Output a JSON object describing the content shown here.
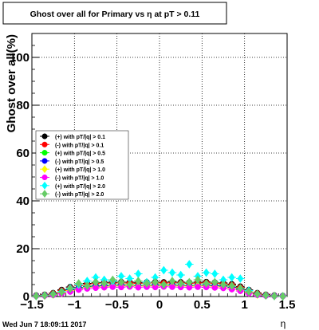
{
  "chart_data": {
    "type": "scatter",
    "title": "Ghost over all for Primary vs   η at pT > 0.11",
    "xlabel": "η",
    "ylabel": "Ghost over all(%)",
    "xlim": [
      -1.5,
      1.5
    ],
    "ylim": [
      0,
      110
    ],
    "x_ticks": [
      -1.5,
      -1,
      -0.5,
      0,
      0.5,
      1,
      1.5
    ],
    "x_tick_labels": [
      "−1.5",
      "−1",
      "−0.5",
      "0",
      "0.5",
      "1",
      "1.5"
    ],
    "y_ticks": [
      0,
      20,
      40,
      60,
      80,
      100
    ],
    "y_tick_labels": [
      "0",
      "20",
      "40",
      "60",
      "80",
      "100"
    ],
    "grid": true,
    "legend_position": "center-left",
    "series": [
      {
        "name": "(+) with pT/|q| > 0.1",
        "color": "#000000",
        "marker": "circle",
        "x": [
          -1.45,
          -1.35,
          -1.25,
          -1.15,
          -1.05,
          -0.95,
          -0.85,
          -0.75,
          -0.65,
          -0.55,
          -0.45,
          -0.35,
          -0.25,
          -0.15,
          -0.05,
          0.05,
          0.15,
          0.25,
          0.35,
          0.45,
          0.55,
          0.65,
          0.75,
          0.85,
          0.95,
          1.05,
          1.15,
          1.25,
          1.35,
          1.45
        ],
        "y": [
          0.5,
          0.8,
          1.5,
          2.8,
          4.0,
          5.0,
          5.5,
          5.8,
          5.9,
          6.0,
          6.1,
          6.0,
          5.9,
          6.0,
          6.1,
          6.0,
          6.1,
          6.0,
          5.9,
          6.0,
          6.1,
          5.9,
          5.7,
          5.2,
          4.2,
          2.8,
          1.5,
          0.8,
          0.5,
          0.3
        ]
      },
      {
        "name": "(-) with pT/|q| > 0.1",
        "color": "#ff0000",
        "marker": "circle",
        "x": [
          -1.45,
          -1.35,
          -1.25,
          -1.15,
          -1.05,
          -0.95,
          -0.85,
          -0.75,
          -0.65,
          -0.55,
          -0.45,
          -0.35,
          -0.25,
          -0.15,
          -0.05,
          0.05,
          0.15,
          0.25,
          0.35,
          0.45,
          0.55,
          0.65,
          0.75,
          0.85,
          0.95,
          1.05,
          1.15,
          1.25,
          1.35,
          1.45
        ],
        "y": [
          0.4,
          0.7,
          1.3,
          2.5,
          3.6,
          4.6,
          5.1,
          5.4,
          5.5,
          5.6,
          5.7,
          5.6,
          5.5,
          5.6,
          5.7,
          5.6,
          5.7,
          5.6,
          5.5,
          5.6,
          5.7,
          5.5,
          5.3,
          4.8,
          3.8,
          2.5,
          1.3,
          0.7,
          0.4,
          0.2
        ]
      },
      {
        "name": "(+) with pT/|q| > 0.5",
        "color": "#00ff00",
        "marker": "circle",
        "x": [
          -1.45,
          -1.35,
          -1.25,
          -1.15,
          -1.05,
          -0.95,
          -0.85,
          -0.75,
          -0.65,
          -0.55,
          -0.45,
          -0.35,
          -0.25,
          -0.15,
          -0.05,
          0.05,
          0.15,
          0.25,
          0.35,
          0.45,
          0.55,
          0.65,
          0.75,
          0.85,
          0.95,
          1.05,
          1.15,
          1.25,
          1.35,
          1.45
        ],
        "y": [
          0.3,
          0.5,
          1.0,
          2.0,
          3.0,
          3.8,
          4.2,
          4.5,
          4.7,
          4.8,
          4.9,
          4.8,
          4.7,
          4.8,
          4.9,
          4.8,
          4.9,
          4.8,
          4.7,
          4.8,
          4.9,
          4.7,
          4.5,
          4.0,
          3.2,
          2.0,
          1.0,
          0.5,
          0.3,
          0.2
        ]
      },
      {
        "name": "(-) with pT/|q| > 0.5",
        "color": "#0000ff",
        "marker": "circle",
        "x": [
          -1.45,
          -1.35,
          -1.25,
          -1.15,
          -1.05,
          -0.95,
          -0.85,
          -0.75,
          -0.65,
          -0.55,
          -0.45,
          -0.35,
          -0.25,
          -0.15,
          -0.05,
          0.05,
          0.15,
          0.25,
          0.35,
          0.45,
          0.55,
          0.65,
          0.75,
          0.85,
          0.95,
          1.05,
          1.15,
          1.25,
          1.35,
          1.45
        ],
        "y": [
          0.3,
          0.5,
          0.9,
          1.8,
          2.8,
          3.6,
          4.0,
          4.3,
          4.5,
          4.6,
          4.7,
          4.6,
          4.5,
          4.6,
          4.7,
          4.6,
          4.7,
          4.6,
          4.5,
          4.6,
          4.7,
          4.5,
          4.3,
          3.8,
          3.0,
          1.8,
          0.9,
          0.5,
          0.3,
          0.2
        ]
      },
      {
        "name": "(+) with pT/|q| > 1.0",
        "color": "#ffff00",
        "marker": "diamond",
        "x": [
          -1.45,
          -1.35,
          -1.25,
          -1.15,
          -1.05,
          -0.95,
          -0.85,
          -0.75,
          -0.65,
          -0.55,
          -0.45,
          -0.35,
          -0.25,
          -0.15,
          -0.05,
          0.05,
          0.15,
          0.25,
          0.35,
          0.45,
          0.55,
          0.65,
          0.75,
          0.85,
          0.95,
          1.05,
          1.15,
          1.25,
          1.35,
          1.45
        ],
        "y": [
          0.2,
          0.4,
          0.8,
          1.5,
          2.5,
          3.2,
          3.8,
          4.0,
          4.2,
          4.5,
          4.4,
          4.6,
          4.3,
          4.5,
          4.4,
          4.6,
          4.5,
          4.4,
          4.3,
          4.5,
          4.4,
          4.2,
          4.0,
          3.5,
          2.7,
          1.6,
          0.8,
          0.4,
          0.2,
          0.1
        ]
      },
      {
        "name": "(-) with pT/|q| > 1.0",
        "color": "#ff00ff",
        "marker": "circle",
        "x": [
          -1.45,
          -1.35,
          -1.25,
          -1.15,
          -1.05,
          -0.95,
          -0.85,
          -0.75,
          -0.65,
          -0.55,
          -0.45,
          -0.35,
          -0.25,
          -0.15,
          -0.05,
          0.05,
          0.15,
          0.25,
          0.35,
          0.45,
          0.55,
          0.65,
          0.75,
          0.85,
          0.95,
          1.05,
          1.15,
          1.25,
          1.35,
          1.45
        ],
        "y": [
          0.2,
          0.3,
          0.6,
          1.2,
          2.0,
          2.8,
          3.3,
          3.6,
          3.8,
          4.0,
          3.9,
          4.1,
          3.8,
          4.0,
          3.9,
          4.1,
          4.0,
          3.9,
          3.8,
          4.0,
          3.9,
          3.7,
          3.5,
          3.0,
          2.3,
          1.3,
          0.6,
          0.3,
          0.2,
          0.1
        ]
      },
      {
        "name": "(+) with pT/|q| > 2.0",
        "color": "#00ffff",
        "marker": "diamond",
        "x": [
          -1.45,
          -1.35,
          -1.25,
          -1.15,
          -1.05,
          -0.95,
          -0.85,
          -0.75,
          -0.65,
          -0.55,
          -0.45,
          -0.35,
          -0.25,
          -0.15,
          -0.05,
          0.05,
          0.15,
          0.25,
          0.35,
          0.45,
          0.55,
          0.65,
          0.75,
          0.85,
          0.95,
          1.05,
          1.15,
          1.25,
          1.35,
          1.45
        ],
        "y": [
          0.2,
          0.5,
          1.0,
          2.0,
          3.5,
          5.0,
          6.5,
          8.0,
          7.0,
          6.5,
          8.5,
          7.5,
          9.5,
          6.0,
          8.0,
          11.0,
          10.0,
          9.0,
          13.5,
          8.5,
          10.0,
          9.5,
          7.0,
          8.0,
          7.5,
          2.5,
          1.0,
          0.5,
          0.2,
          0.1
        ]
      },
      {
        "name": "(-) with pT/|q| > 2.0",
        "color": "#66cc66",
        "marker": "diamond",
        "x": [
          -1.45,
          -1.35,
          -1.25,
          -1.15,
          -1.05,
          -0.95,
          -0.85,
          -0.75,
          -0.65,
          -0.55,
          -0.45,
          -0.35,
          -0.25,
          -0.15,
          -0.05,
          0.05,
          0.15,
          0.25,
          0.35,
          0.45,
          0.55,
          0.65,
          0.75,
          0.85,
          0.95,
          1.05,
          1.15,
          1.25,
          1.35,
          1.45
        ],
        "y": [
          0.2,
          0.4,
          0.9,
          1.8,
          3.2,
          5.5,
          4.5,
          6.0,
          5.5,
          7.0,
          6.0,
          5.0,
          6.5,
          5.5,
          6.0,
          5.0,
          6.5,
          5.5,
          6.0,
          7.0,
          5.5,
          6.0,
          5.0,
          4.5,
          3.5,
          2.0,
          1.0,
          0.5,
          0.2,
          0.1
        ]
      }
    ]
  },
  "footer": {
    "timestamp": "Wed Jun  7 18:09:11 2017"
  }
}
